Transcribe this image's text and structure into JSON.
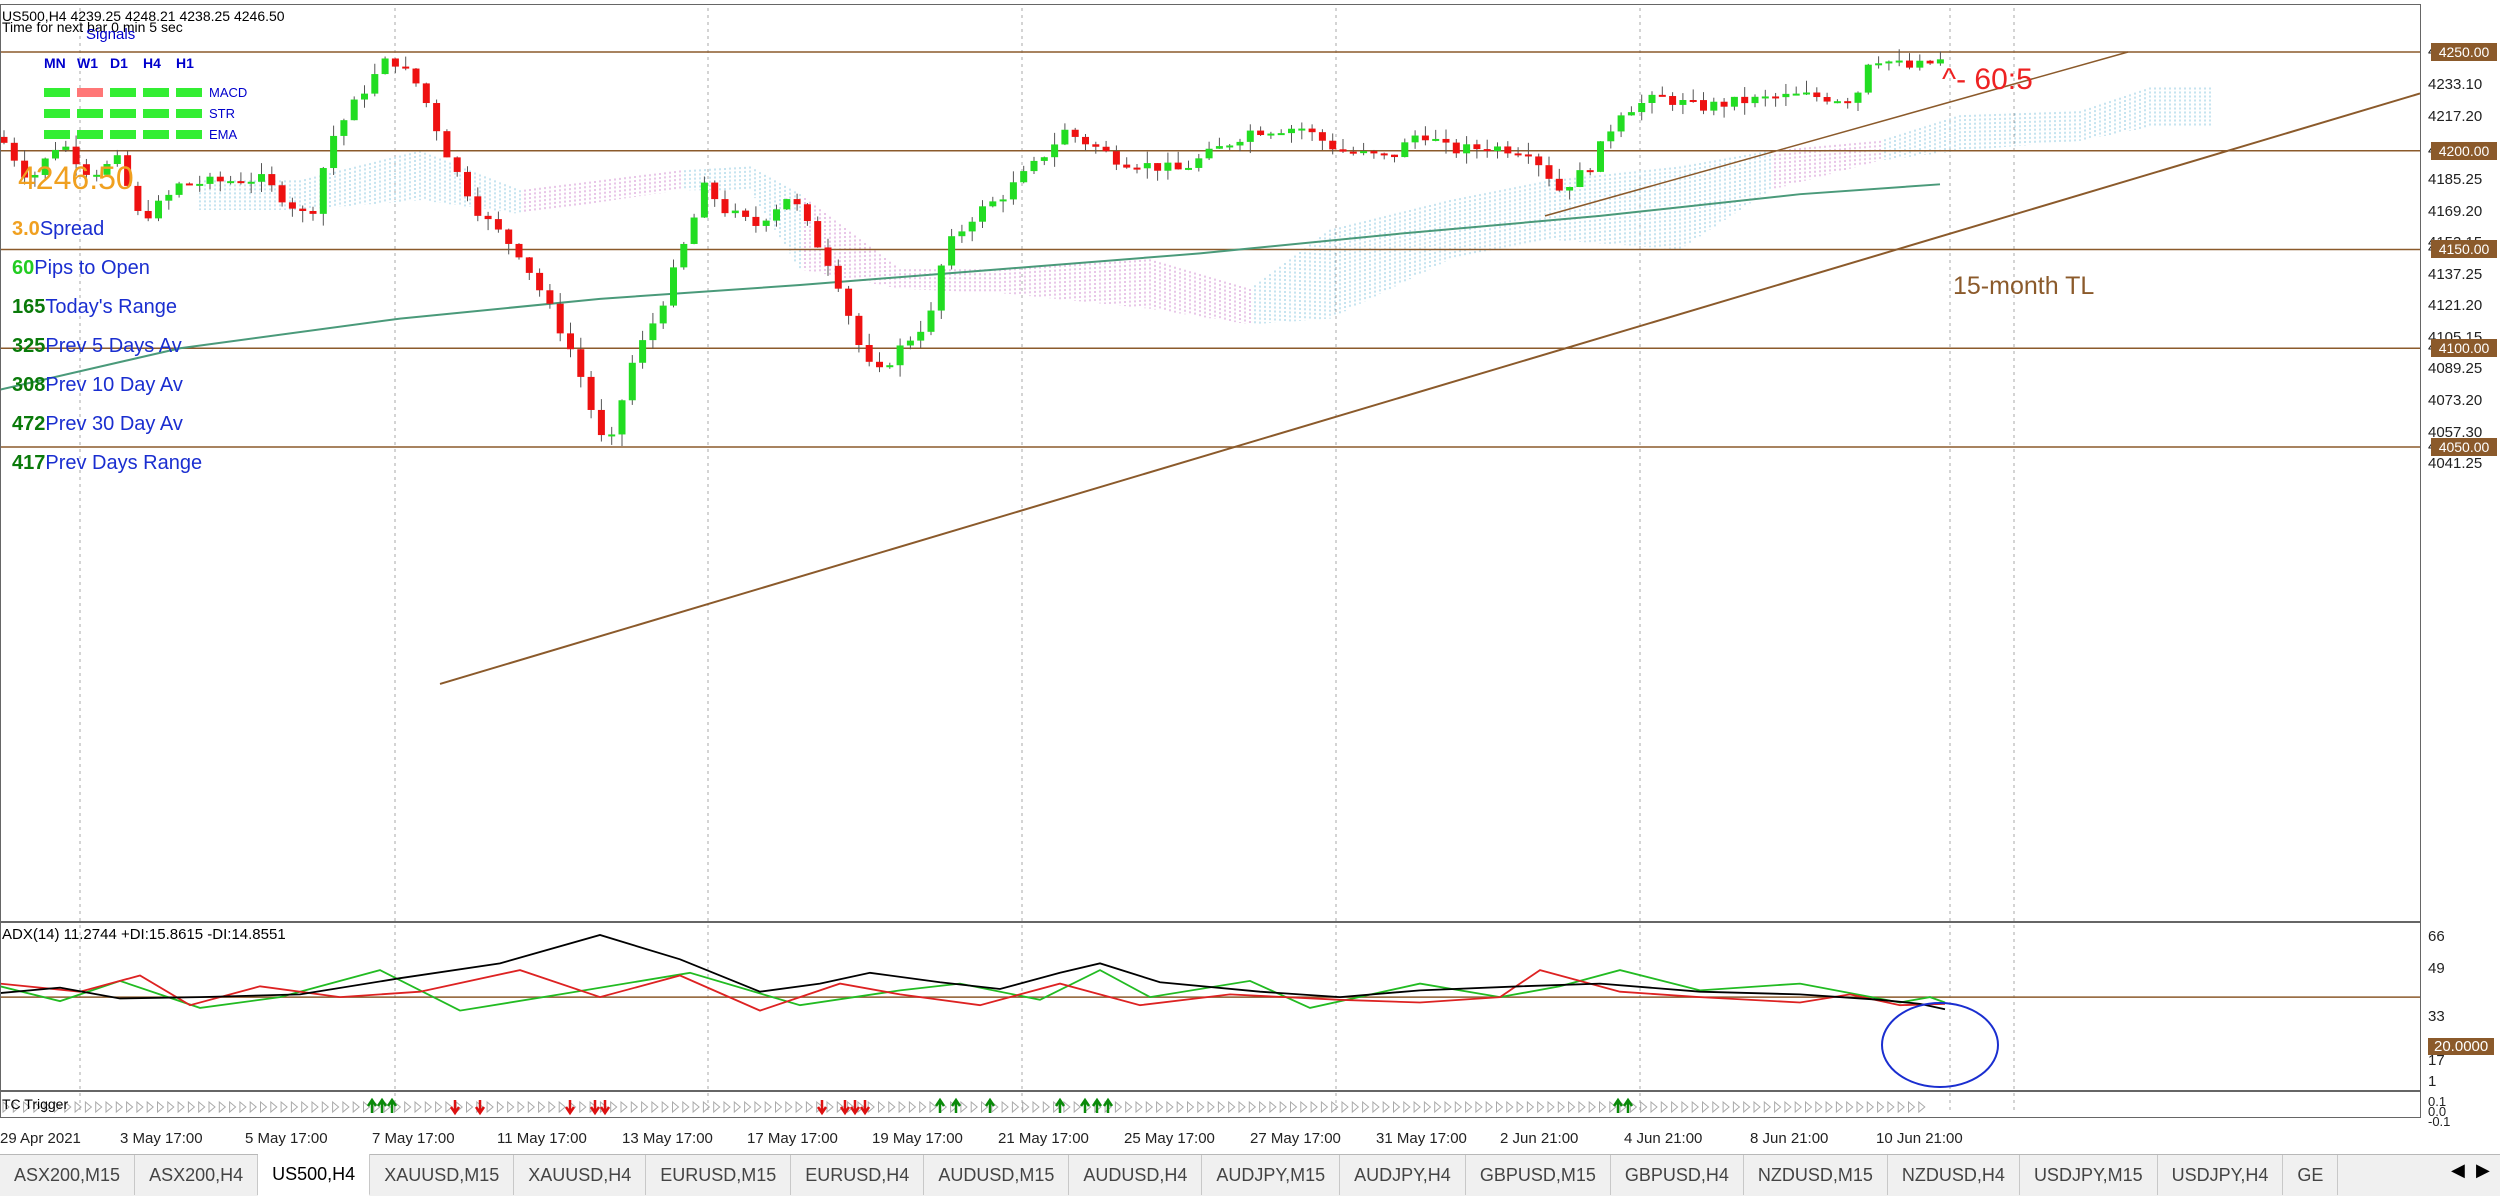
{
  "header": {
    "symbol_line": "US500,H4  4239.25 4248.21 4238.25 4246.50",
    "timer": "Time for next bar 0 min 5 sec",
    "signals_title": "Signals"
  },
  "signals": {
    "timeframes": [
      "MN",
      "W1",
      "D1",
      "H4",
      "H1"
    ],
    "rows": [
      {
        "label": "MACD",
        "colors": [
          "#33ee33",
          "#ff7777",
          "#33ee33",
          "#33ee33",
          "#33ee33"
        ]
      },
      {
        "label": "STR",
        "colors": [
          "#33ee33",
          "#33ee33",
          "#33ee33",
          "#33ee33",
          "#33ee33"
        ]
      },
      {
        "label": "EMA",
        "colors": [
          "#33ee33",
          "#33ee33",
          "#33ee33",
          "#33ee33",
          "#33ee33"
        ]
      }
    ]
  },
  "info_panel": {
    "price": "4246.50",
    "rows": [
      {
        "value": "3.0",
        "label": "Spread"
      },
      {
        "value": "60",
        "label": "Pips to Open"
      },
      {
        "value": "165",
        "label": "Today's Range"
      },
      {
        "value": "325",
        "label": "Prev 5 Days Av"
      },
      {
        "value": "308",
        "label": "Prev 10 Day Av"
      },
      {
        "value": "472",
        "label": "Prev 30 Day Av"
      },
      {
        "value": "417",
        "label": "Prev Days Range"
      }
    ]
  },
  "annotations": {
    "ratio": "^- 60:5",
    "trendline": "15-month TL"
  },
  "price_axis": [
    "4250.00",
    "4233.10",
    "4217.20",
    "4200.00",
    "4185.25",
    "4169.20",
    "4153.15",
    "4150.00",
    "4137.25",
    "4121.20",
    "4105.15",
    "4100.00",
    "4089.25",
    "4073.20",
    "4057.30",
    "4050.00",
    "4041.25"
  ],
  "levels": [
    {
      "label": "4250.00"
    },
    {
      "label": "4200.00"
    },
    {
      "label": "4150.00"
    },
    {
      "label": "4100.00"
    },
    {
      "label": "4050.00"
    }
  ],
  "dates": [
    "29 Apr 2021",
    "3 May 17:00",
    "5 May 17:00",
    "7 May 17:00",
    "11 May 17:00",
    "13 May 17:00",
    "17 May 17:00",
    "19 May 17:00",
    "21 May 17:00",
    "25 May 17:00",
    "27 May 17:00",
    "31 May 17:00",
    "2 Jun 21:00",
    "4 Jun 21:00",
    "8 Jun 21:00",
    "10 Jun 21:00"
  ],
  "adx": {
    "label": "ADX(14) 11.2744 +DI:15.8615 -DI:14.8551",
    "axis": [
      "66",
      "49",
      "33",
      "20.0000",
      "17",
      "1"
    ],
    "level_label": "20.0000"
  },
  "trigger": {
    "label": "TC Trigger",
    "axis": [
      "0.1",
      "0.0",
      "-0.1"
    ]
  },
  "tabs": [
    "ASX200,M15",
    "ASX200,H4",
    "US500,H4",
    "XAUUSD,M15",
    "XAUUSD,H4",
    "EURUSD,M15",
    "EURUSD,H4",
    "AUDUSD,M15",
    "AUDUSD,H4",
    "AUDJPY,M15",
    "AUDJPY,H4",
    "GBPUSD,M15",
    "GBPUSD,H4",
    "NZDUSD,M15",
    "NZDUSD,H4",
    "USDJPY,M15",
    "USDJPY,H4",
    "GE"
  ],
  "active_tab": "US500,H4",
  "colors": {
    "bull": "#22dd22",
    "bear": "#ee1111",
    "level": "#8b5a2b",
    "ema": "#4a9a7a",
    "adx": "#000000",
    "plus_di": "#22bb22",
    "minus_di": "#dd2222"
  }
}
